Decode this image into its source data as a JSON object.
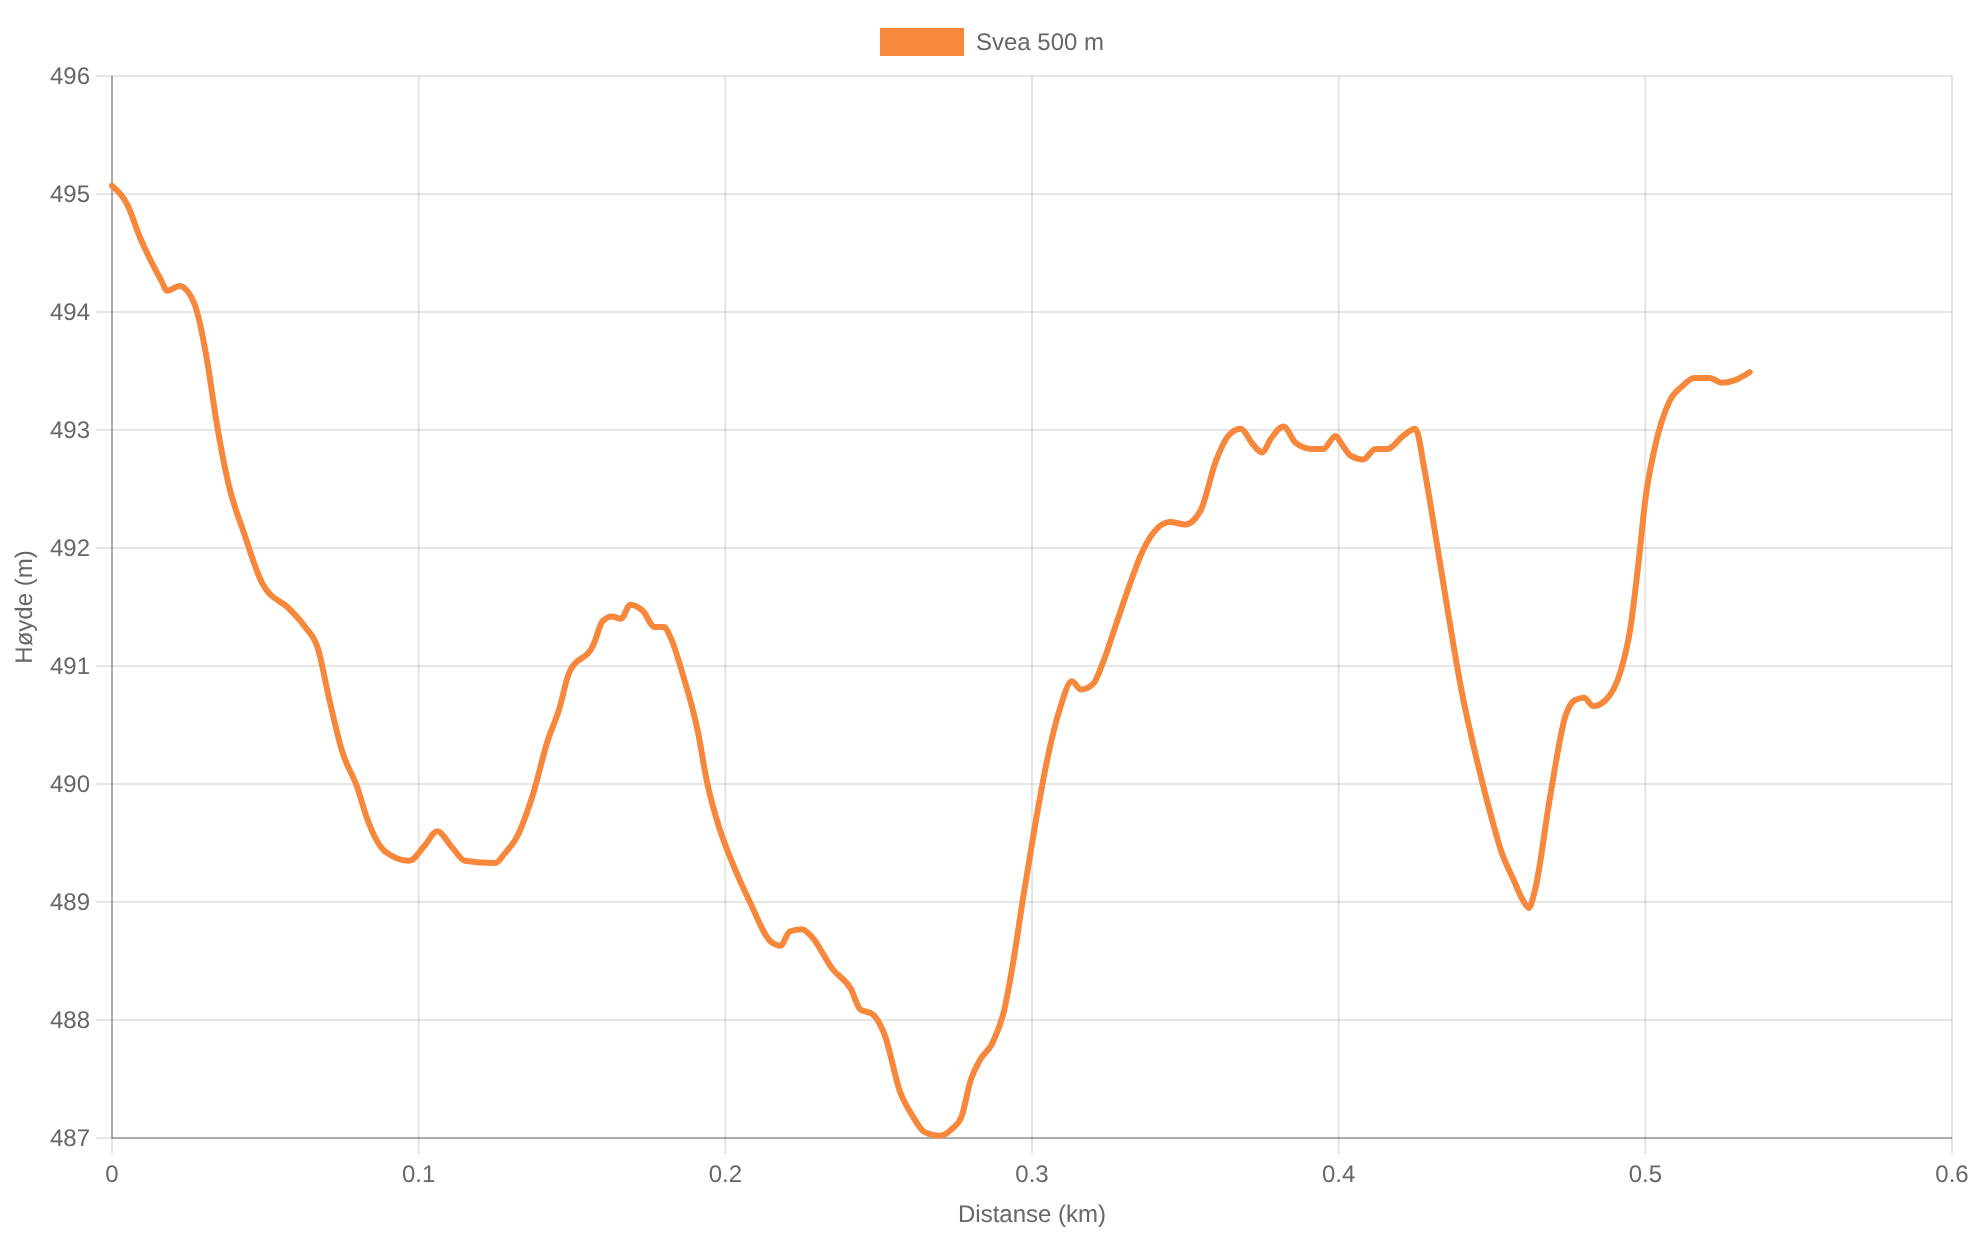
{
  "chart_data": {
    "type": "line",
    "xlabel": "Distanse (km)",
    "ylabel": "Høyde (m)",
    "x": [
      0,
      0.005,
      0.009,
      0.016,
      0.018,
      0.022,
      0.027,
      0.031,
      0.034,
      0.038,
      0.043,
      0.049,
      0.058,
      0.063,
      0.067,
      0.071,
      0.075,
      0.08,
      0.083,
      0.089,
      0.097,
      0.102,
      0.106,
      0.111,
      0.115,
      0.125,
      0.128,
      0.132,
      0.137,
      0.142,
      0.146,
      0.149,
      0.157,
      0.16,
      0.163,
      0.166,
      0.169,
      0.173,
      0.177,
      0.18,
      0.182,
      0.186,
      0.191,
      0.194,
      0.198,
      0.202,
      0.208,
      0.215,
      0.218,
      0.221,
      0.225,
      0.228,
      0.235,
      0.241,
      0.244,
      0.248,
      0.252,
      0.257,
      0.261,
      0.265,
      0.27,
      0.274,
      0.277,
      0.28,
      0.283,
      0.287,
      0.291,
      0.294,
      0.297,
      0.301,
      0.305,
      0.309,
      0.313,
      0.316,
      0.32,
      0.323,
      0.327,
      0.332,
      0.336,
      0.341,
      0.345,
      0.35,
      0.355,
      0.36,
      0.364,
      0.368,
      0.372,
      0.375,
      0.378,
      0.382,
      0.386,
      0.391,
      0.395,
      0.399,
      0.401,
      0.404,
      0.408,
      0.412,
      0.416,
      0.421,
      0.425,
      0.428,
      0.431,
      0.435,
      0.44,
      0.445,
      0.45,
      0.453,
      0.457,
      0.46,
      0.462,
      0.464,
      0.469,
      0.474,
      0.477,
      0.48,
      0.483,
      0.487,
      0.492,
      0.495,
      0.498,
      0.5,
      0.503,
      0.508,
      0.512,
      0.516,
      0.521,
      0.525,
      0.529,
      0.534
    ],
    "series": [
      {
        "name": "Svea 500 m",
        "color": "#f7873a",
        "values": [
          495.07,
          494.91,
          494.64,
          494.27,
          494.18,
          494.22,
          494.06,
          493.59,
          493.08,
          492.54,
          492.13,
          491.7,
          491.48,
          491.33,
          491.16,
          490.7,
          490.28,
          489.97,
          489.72,
          489.43,
          489.35,
          489.48,
          489.6,
          489.46,
          489.35,
          489.33,
          489.41,
          489.55,
          489.89,
          490.36,
          490.65,
          490.94,
          491.18,
          491.38,
          491.42,
          491.4,
          491.52,
          491.47,
          491.33,
          491.33,
          491.25,
          490.94,
          490.45,
          490.02,
          489.63,
          489.35,
          489.0,
          488.66,
          488.63,
          488.75,
          488.77,
          488.71,
          488.43,
          488.26,
          488.09,
          488.05,
          487.87,
          487.39,
          487.19,
          487.05,
          487.02,
          487.08,
          487.18,
          487.49,
          487.66,
          487.8,
          488.09,
          488.51,
          489.02,
          489.65,
          490.21,
          490.63,
          490.87,
          490.8,
          490.85,
          491.02,
          491.32,
          491.7,
          491.97,
          492.17,
          492.22,
          492.2,
          492.32,
          492.74,
          492.95,
          493.01,
          492.88,
          492.81,
          492.93,
          493.03,
          492.89,
          492.84,
          492.84,
          492.95,
          492.88,
          492.78,
          492.75,
          492.84,
          492.84,
          492.95,
          493.01,
          492.66,
          492.2,
          491.56,
          490.8,
          490.21,
          489.7,
          489.43,
          489.19,
          489.02,
          488.95,
          489.1,
          489.9,
          490.58,
          490.71,
          490.73,
          490.66,
          490.71,
          490.96,
          491.3,
          491.93,
          492.41,
          492.84,
          493.25,
          493.37,
          493.44,
          493.44,
          493.4,
          493.42,
          493.49
        ]
      }
    ],
    "xlim": [
      0,
      0.6
    ],
    "ylim": [
      487,
      496
    ],
    "xticks": [
      0,
      0.1,
      0.2,
      0.3,
      0.4,
      0.5,
      0.6
    ],
    "yticks": [
      487,
      488,
      489,
      490,
      491,
      492,
      493,
      494,
      495,
      496
    ],
    "grid": true,
    "legend": "top"
  }
}
